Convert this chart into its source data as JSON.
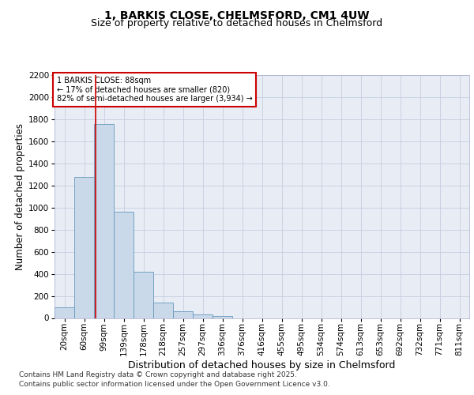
{
  "title": "1, BARKIS CLOSE, CHELMSFORD, CM1 4UW",
  "subtitle": "Size of property relative to detached houses in Chelmsford",
  "xlabel": "Distribution of detached houses by size in Chelmsford",
  "ylabel": "Number of detached properties",
  "categories": [
    "20sqm",
    "60sqm",
    "99sqm",
    "139sqm",
    "178sqm",
    "218sqm",
    "257sqm",
    "297sqm",
    "336sqm",
    "376sqm",
    "416sqm",
    "455sqm",
    "495sqm",
    "534sqm",
    "574sqm",
    "613sqm",
    "653sqm",
    "692sqm",
    "732sqm",
    "771sqm",
    "811sqm"
  ],
  "values": [
    100,
    1280,
    1760,
    960,
    415,
    140,
    60,
    30,
    15,
    0,
    0,
    0,
    0,
    0,
    0,
    0,
    0,
    0,
    0,
    0,
    0
  ],
  "bar_color": "#c9d9ea",
  "bar_edge_color": "#6699bb",
  "vline_color": "#cc0000",
  "vline_pos": 1.57,
  "annotation_text": "1 BARKIS CLOSE: 88sqm\n← 17% of detached houses are smaller (820)\n82% of semi-detached houses are larger (3,934) →",
  "annotation_box_facecolor": "#ffffff",
  "annotation_box_edgecolor": "#cc0000",
  "ylim": [
    0,
    2200
  ],
  "yticks": [
    0,
    200,
    400,
    600,
    800,
    1000,
    1200,
    1400,
    1600,
    1800,
    2000,
    2200
  ],
  "grid_color": "#c5cfe0",
  "background_color": "#e8edf5",
  "footer_line1": "Contains HM Land Registry data © Crown copyright and database right 2025.",
  "footer_line2": "Contains public sector information licensed under the Open Government Licence v3.0.",
  "title_fontsize": 10,
  "subtitle_fontsize": 9,
  "ylabel_fontsize": 8.5,
  "xlabel_fontsize": 9,
  "tick_fontsize": 7.5,
  "annotation_fontsize": 7,
  "footer_fontsize": 6.5
}
